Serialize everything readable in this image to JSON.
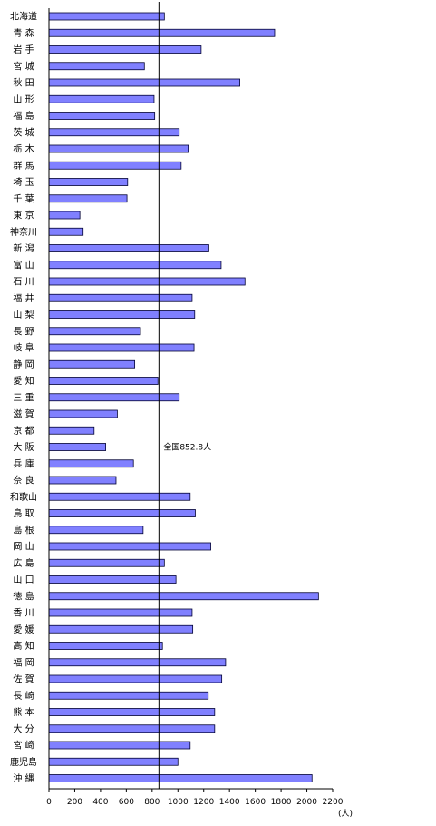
{
  "chart_data": {
    "type": "bar",
    "orientation": "horizontal",
    "categories": [
      "北海道",
      "青 森",
      "岩 手",
      "宮 城",
      "秋 田",
      "山 形",
      "福 島",
      "茨 城",
      "栃 木",
      "群 馬",
      "埼 玉",
      "千 葉",
      "東 京",
      "神奈川",
      "新 潟",
      "富 山",
      "石 川",
      "福 井",
      "山 梨",
      "長 野",
      "岐 阜",
      "静 岡",
      "愛 知",
      "三 重",
      "滋 賀",
      "京 都",
      "大 阪",
      "兵 庫",
      "奈 良",
      "和歌山",
      "鳥 取",
      "島 根",
      "岡 山",
      "広 島",
      "山 口",
      "徳 島",
      "香 川",
      "愛 媛",
      "高 知",
      "福 岡",
      "佐 賀",
      "長 崎",
      "熊 本",
      "大 分",
      "宮 崎",
      "鹿児島",
      "沖 縄"
    ],
    "values": [
      895,
      1750,
      1180,
      740,
      1480,
      815,
      820,
      1010,
      1080,
      1025,
      610,
      605,
      240,
      265,
      1240,
      1335,
      1520,
      1110,
      1130,
      710,
      1125,
      665,
      845,
      1010,
      530,
      350,
      440,
      655,
      520,
      1095,
      1135,
      730,
      1255,
      895,
      985,
      2090,
      1110,
      1115,
      880,
      1370,
      1340,
      1235,
      1285,
      1285,
      1095,
      1000,
      2040
    ],
    "xlim": [
      0,
      2200
    ],
    "ticks": [
      0,
      200,
      400,
      600,
      800,
      1000,
      1200,
      1400,
      1600,
      1800,
      2000,
      2200
    ],
    "xunit": "(人)",
    "reference": {
      "value": 852.8,
      "label": "全国852.8人"
    },
    "grid": false,
    "legend": "none",
    "colors": {
      "bar": "#8080ff",
      "bar_edge": "#000033",
      "axis": "#000000"
    }
  }
}
